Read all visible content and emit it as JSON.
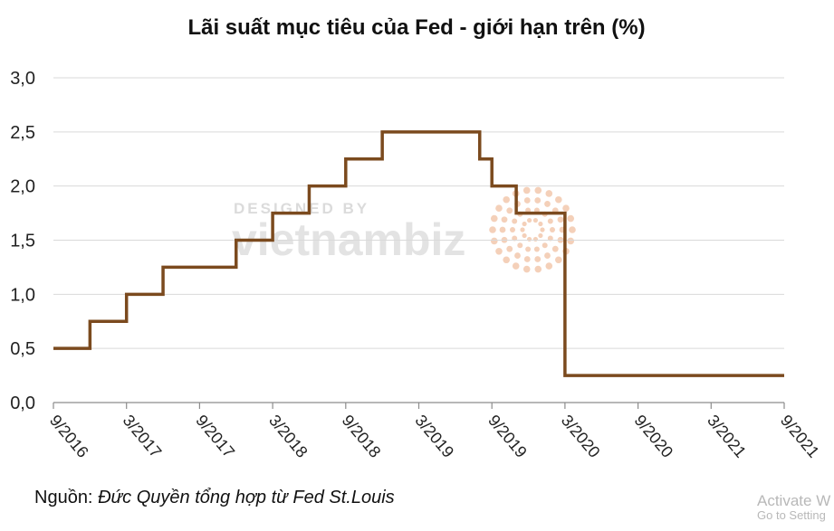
{
  "chart_data": {
    "type": "line",
    "step": true,
    "title": "Lãi suất mục tiêu của Fed - giới hạn trên (%)",
    "xlabel": "",
    "ylabel": "",
    "ylim": [
      0,
      3.0
    ],
    "yticks": [
      "0,0",
      "0,5",
      "1,0",
      "1,5",
      "2,0",
      "2,5",
      "3,0"
    ],
    "yticks_values": [
      0,
      0.5,
      1.0,
      1.5,
      2.0,
      2.5,
      3.0
    ],
    "xticks": [
      "9/2016",
      "3/2017",
      "9/2017",
      "3/2018",
      "9/2018",
      "3/2019",
      "9/2019",
      "3/2020",
      "9/2020",
      "3/2021",
      "9/2021"
    ],
    "xlim": [
      "2016-09",
      "2021-09"
    ],
    "grid": "horizontal",
    "color": "#7b4a1e",
    "series": [
      {
        "points": [
          [
            "2016-09",
            0.5
          ],
          [
            "2016-12",
            0.75
          ],
          [
            "2017-03",
            1.0
          ],
          [
            "2017-06",
            1.25
          ],
          [
            "2017-12",
            1.5
          ],
          [
            "2018-03",
            1.75
          ],
          [
            "2018-06",
            2.0
          ],
          [
            "2018-09",
            2.25
          ],
          [
            "2018-12",
            2.5
          ],
          [
            "2019-08",
            2.25
          ],
          [
            "2019-09",
            2.0
          ],
          [
            "2019-11",
            1.75
          ],
          [
            "2020-03",
            1.25
          ],
          [
            "2020-03",
            0.25
          ],
          [
            "2021-09",
            0.25
          ]
        ]
      }
    ]
  },
  "source": {
    "prefix": "Nguồn: ",
    "text": "Đức Quyền tổng hợp từ Fed St.Louis"
  },
  "watermark": {
    "designed_by": "DESIGNED BY",
    "brand": "vietnambiz"
  },
  "activate": {
    "line1": "Activate W",
    "line2": "Go to Setting"
  }
}
